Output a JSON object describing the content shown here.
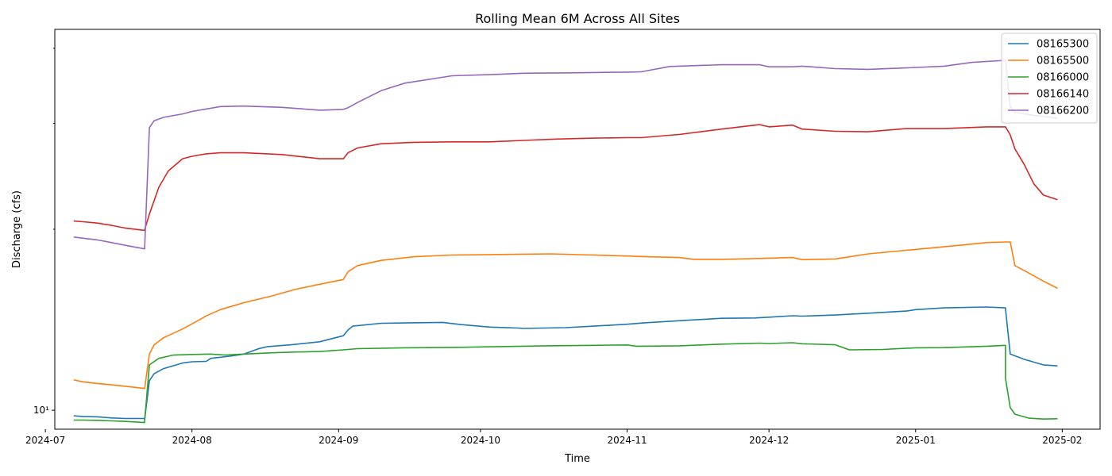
{
  "chart_data": {
    "type": "line",
    "title": "Rolling Mean 6M Across All Sites",
    "xlabel": "Time",
    "ylabel": "Discharge (cfs)",
    "yscale": "log",
    "xlim": [
      "2024-07-03",
      "2025-02-09"
    ],
    "ylim": [
      9.3,
      43
    ],
    "x_ticks": [
      "2024-07-01",
      "2024-08-01",
      "2024-09-01",
      "2024-10-01",
      "2024-11-01",
      "2024-12-01",
      "2025-01-01",
      "2025-02-01"
    ],
    "x_tick_labels": [
      "2024-07",
      "2024-08",
      "2024-09",
      "2024-10",
      "2024-11",
      "2024-12",
      "2025-01",
      "2025-02"
    ],
    "y_ticks": [
      10
    ],
    "y_tick_labels": [
      "10¹"
    ],
    "grid": false,
    "legend_position": "top-right",
    "series": [
      {
        "name": "08165300",
        "color": "#1f77b4",
        "x": [
          "2024-07-07",
          "2024-07-09",
          "2024-07-12",
          "2024-07-15",
          "2024-07-18",
          "2024-07-22",
          "2024-07-22",
          "2024-07-23",
          "2024-07-24",
          "2024-07-26",
          "2024-07-30",
          "2024-08-01",
          "2024-08-04",
          "2024-08-05",
          "2024-08-09",
          "2024-08-12",
          "2024-08-15",
          "2024-08-17",
          "2024-08-22",
          "2024-08-28",
          "2024-09-02",
          "2024-09-03",
          "2024-09-04",
          "2024-09-10",
          "2024-09-23",
          "2024-09-27",
          "2024-10-03",
          "2024-10-09",
          "2024-10-10",
          "2024-10-19",
          "2024-10-25",
          "2024-11-01",
          "2024-11-05",
          "2024-11-14",
          "2024-11-21",
          "2024-11-28",
          "2024-12-01",
          "2024-12-06",
          "2024-12-08",
          "2024-12-15",
          "2024-12-22",
          "2024-12-30",
          "2025-01-01",
          "2025-01-07",
          "2025-01-16",
          "2025-01-20",
          "2025-01-20",
          "2025-01-21",
          "2025-01-24",
          "2025-01-28",
          "2025-01-31"
        ],
        "values": [
          9.79,
          9.76,
          9.75,
          9.71,
          9.69,
          9.69,
          9.65,
          11.2,
          11.5,
          11.73,
          11.98,
          12.04,
          12.06,
          12.2,
          12.3,
          12.4,
          12.65,
          12.76,
          12.85,
          13.0,
          13.3,
          13.6,
          13.8,
          13.95,
          14.0,
          13.88,
          13.75,
          13.7,
          13.68,
          13.72,
          13.8,
          13.9,
          13.98,
          14.12,
          14.22,
          14.24,
          14.28,
          14.36,
          14.34,
          14.4,
          14.5,
          14.62,
          14.7,
          14.8,
          14.85,
          14.8,
          14.75,
          12.4,
          12.15,
          11.9,
          11.85
        ]
      },
      {
        "name": "08165500",
        "color": "#ff7f0e",
        "x": [
          "2024-07-07",
          "2024-07-09",
          "2024-07-12",
          "2024-07-15",
          "2024-07-18",
          "2024-07-22",
          "2024-07-22",
          "2024-07-23",
          "2024-07-24",
          "2024-07-26",
          "2024-07-30",
          "2024-08-03",
          "2024-08-04",
          "2024-08-07",
          "2024-08-12",
          "2024-08-18",
          "2024-08-23",
          "2024-08-28",
          "2024-09-02",
          "2024-09-03",
          "2024-09-05",
          "2024-09-10",
          "2024-09-17",
          "2024-09-25",
          "2024-10-03",
          "2024-10-10",
          "2024-10-16",
          "2024-10-25",
          "2024-11-01",
          "2024-11-05",
          "2024-11-12",
          "2024-11-15",
          "2024-11-21",
          "2024-11-29",
          "2024-12-06",
          "2024-12-08",
          "2024-12-15",
          "2024-12-22",
          "2024-12-30",
          "2025-01-07",
          "2025-01-16",
          "2025-01-20",
          "2025-01-21",
          "2025-01-22",
          "2025-01-25",
          "2025-01-28",
          "2025-01-31"
        ],
        "values": [
          11.23,
          11.15,
          11.08,
          11.02,
          10.96,
          10.87,
          10.87,
          12.4,
          12.85,
          13.2,
          13.65,
          14.2,
          14.35,
          14.7,
          15.1,
          15.5,
          15.9,
          16.2,
          16.5,
          17.0,
          17.4,
          17.75,
          18.0,
          18.12,
          18.15,
          18.18,
          18.2,
          18.12,
          18.05,
          18.0,
          17.95,
          17.82,
          17.82,
          17.88,
          17.95,
          17.8,
          17.85,
          18.2,
          18.45,
          18.7,
          19.0,
          19.05,
          19.05,
          17.4,
          16.9,
          16.4,
          15.95
        ]
      },
      {
        "name": "08166000",
        "color": "#2ca02c",
        "x": [
          "2024-07-07",
          "2024-07-09",
          "2024-07-12",
          "2024-07-15",
          "2024-07-18",
          "2024-07-22",
          "2024-07-22",
          "2024-07-23",
          "2024-07-25",
          "2024-07-28",
          "2024-08-01",
          "2024-08-05",
          "2024-08-08",
          "2024-08-12",
          "2024-08-18",
          "2024-08-23",
          "2024-08-28",
          "2024-09-02",
          "2024-09-03",
          "2024-09-05",
          "2024-09-15",
          "2024-09-25",
          "2024-10-05",
          "2024-10-15",
          "2024-10-25",
          "2024-11-01",
          "2024-11-03",
          "2024-11-12",
          "2024-11-21",
          "2024-11-29",
          "2024-12-01",
          "2024-12-06",
          "2024-12-08",
          "2024-12-15",
          "2024-12-18",
          "2024-12-25",
          "2025-01-01",
          "2025-01-07",
          "2025-01-16",
          "2025-01-20",
          "2025-01-20",
          "2025-01-21",
          "2025-01-22",
          "2025-01-25",
          "2025-01-28",
          "2025-01-31"
        ],
        "values": [
          9.63,
          9.63,
          9.62,
          9.6,
          9.58,
          9.54,
          9.6,
          11.9,
          12.2,
          12.35,
          12.38,
          12.4,
          12.35,
          12.4,
          12.46,
          12.5,
          12.52,
          12.6,
          12.62,
          12.66,
          12.7,
          12.72,
          12.76,
          12.8,
          12.82,
          12.84,
          12.78,
          12.8,
          12.88,
          12.93,
          12.91,
          12.95,
          12.9,
          12.85,
          12.6,
          12.62,
          12.7,
          12.71,
          12.78,
          12.82,
          11.3,
          10.1,
          9.85,
          9.7,
          9.67,
          9.68
        ]
      },
      {
        "name": "08166140",
        "color": "#d62728",
        "x": [
          "2024-07-07",
          "2024-07-09",
          "2024-07-12",
          "2024-07-15",
          "2024-07-18",
          "2024-07-22",
          "2024-07-22",
          "2024-07-23",
          "2024-07-25",
          "2024-07-27",
          "2024-07-30",
          "2024-08-01",
          "2024-08-04",
          "2024-08-07",
          "2024-08-12",
          "2024-08-20",
          "2024-08-28",
          "2024-09-02",
          "2024-09-03",
          "2024-09-05",
          "2024-09-10",
          "2024-09-17",
          "2024-09-25",
          "2024-10-03",
          "2024-10-10",
          "2024-10-17",
          "2024-10-25",
          "2024-11-01",
          "2024-11-04",
          "2024-11-12",
          "2024-11-21",
          "2024-11-29",
          "2024-12-01",
          "2024-12-06",
          "2024-12-08",
          "2024-12-15",
          "2024-12-22",
          "2024-12-30",
          "2025-01-07",
          "2025-01-16",
          "2025-01-20",
          "2025-01-21",
          "2025-01-22",
          "2025-01-24",
          "2025-01-26",
          "2025-01-28",
          "2025-01-31"
        ],
        "values": [
          20.64,
          20.58,
          20.48,
          20.3,
          20.08,
          19.91,
          19.95,
          21.2,
          23.5,
          25.0,
          26.2,
          26.45,
          26.7,
          26.8,
          26.8,
          26.62,
          26.2,
          26.2,
          26.8,
          27.3,
          27.75,
          27.9,
          27.95,
          27.95,
          28.1,
          28.25,
          28.35,
          28.4,
          28.4,
          28.75,
          29.35,
          29.85,
          29.6,
          29.8,
          29.35,
          29.1,
          29.05,
          29.4,
          29.4,
          29.6,
          29.6,
          28.7,
          27.2,
          25.6,
          23.8,
          22.8,
          22.4
        ]
      },
      {
        "name": "08166200",
        "color": "#9467bd",
        "x": [
          "2024-07-07",
          "2024-07-09",
          "2024-07-12",
          "2024-07-15",
          "2024-07-18",
          "2024-07-22",
          "2024-07-22",
          "2024-07-23",
          "2024-07-24",
          "2024-07-26",
          "2024-07-30",
          "2024-08-01",
          "2024-08-04",
          "2024-08-07",
          "2024-08-12",
          "2024-08-20",
          "2024-08-28",
          "2024-09-02",
          "2024-09-03",
          "2024-09-05",
          "2024-09-10",
          "2024-09-15",
          "2024-09-25",
          "2024-10-03",
          "2024-10-10",
          "2024-10-20",
          "2024-10-25",
          "2024-11-01",
          "2024-11-04",
          "2024-11-10",
          "2024-11-21",
          "2024-11-29",
          "2024-12-01",
          "2024-12-06",
          "2024-12-08",
          "2024-12-15",
          "2024-12-22",
          "2024-12-30",
          "2025-01-07",
          "2025-01-13",
          "2025-01-20",
          "2025-01-21",
          "2025-01-22",
          "2025-01-25",
          "2025-01-28",
          "2025-01-31"
        ],
        "values": [
          19.41,
          19.32,
          19.2,
          19.0,
          18.8,
          18.55,
          18.62,
          29.5,
          30.3,
          30.7,
          31.1,
          31.4,
          31.7,
          32.0,
          32.05,
          31.9,
          31.55,
          31.65,
          31.85,
          32.5,
          34.0,
          35.0,
          36.0,
          36.15,
          36.35,
          36.4,
          36.45,
          36.5,
          36.55,
          37.3,
          37.55,
          37.55,
          37.25,
          37.25,
          37.35,
          37.0,
          36.9,
          37.1,
          37.35,
          37.9,
          38.2,
          32.0,
          31.3,
          31.0,
          30.8,
          30.6
        ]
      }
    ]
  }
}
